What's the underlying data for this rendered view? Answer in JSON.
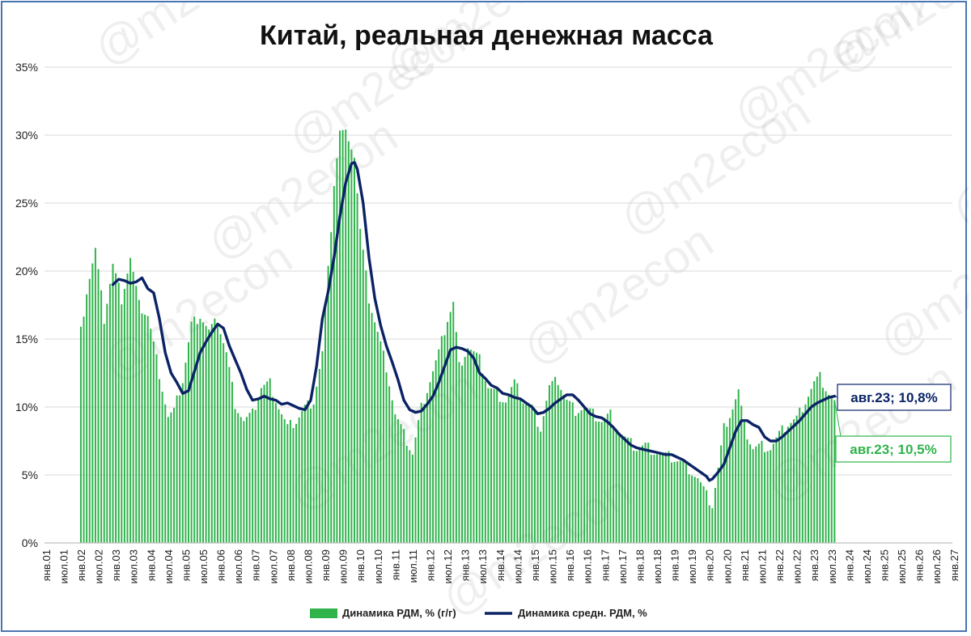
{
  "chart_data": {
    "type": "bar+line",
    "title": "Китай, реальная денежная масса",
    "watermark": "@m2econ",
    "ylim": [
      0,
      35
    ],
    "yticks": [
      0,
      5,
      10,
      15,
      20,
      25,
      30,
      35
    ],
    "ytick_labels": [
      "0%",
      "5%",
      "10%",
      "15%",
      "20%",
      "25%",
      "30%",
      "35%"
    ],
    "xlim": [
      "янв.01",
      "янв.27"
    ],
    "xtick_labels": [
      "янв.01",
      "июл.01",
      "янв.02",
      "июл.02",
      "янв.03",
      "июл.03",
      "янв.04",
      "июл.04",
      "янв.05",
      "июл.05",
      "янв.06",
      "июл.06",
      "янв.07",
      "июл.07",
      "янв.08",
      "июл.08",
      "янв.09",
      "июл.09",
      "янв.10",
      "июл.10",
      "янв.11",
      "июл.11",
      "янв.12",
      "июл.12",
      "янв.13",
      "июл.13",
      "янв.14",
      "июл.14",
      "янв.15",
      "июл.15",
      "янв.16",
      "июл.16",
      "янв.17",
      "июл.17",
      "янв.18",
      "июл.18",
      "янв.19",
      "июл.19",
      "янв.20",
      "июл.20",
      "янв.21",
      "июл.21",
      "янв.22",
      "июл.22",
      "янв.23",
      "июл.23",
      "янв.24",
      "июл.24",
      "янв.25",
      "июл.25",
      "янв.26",
      "июл.26",
      "янв.27"
    ],
    "colors": {
      "bars": "#2fb34a",
      "line": "#0b2365",
      "axis": "#bfbfbf",
      "grid": "#d9d9d9",
      "frame": "#4a74b0"
    },
    "legend": {
      "placement": "bottom-center"
    },
    "series": [
      {
        "name": "Динамика РДМ, % (г/г)",
        "type": "bar",
        "frequency": "monthly",
        "start": "янв.02",
        "anchors": [
          [
            "янв.02",
            15.6
          ],
          [
            "мар.02",
            18.6
          ],
          [
            "июн.02",
            21.6
          ],
          [
            "сен.02",
            16.5
          ],
          [
            "дек.02",
            20.5
          ],
          [
            "мар.03",
            18.0
          ],
          [
            "июн.03",
            21.0
          ],
          [
            "сен.03",
            17.5
          ],
          [
            "дек.03",
            16.8
          ],
          [
            "апр.04",
            12.5
          ],
          [
            "июл.04",
            9.3
          ],
          [
            "сен.04",
            9.7
          ],
          [
            "дек.04",
            12.0
          ],
          [
            "мар.05",
            16.1
          ],
          [
            "июн.05",
            16.8
          ],
          [
            "сен.05",
            15.6
          ],
          [
            "дек.05",
            16.4
          ],
          [
            "мар.06",
            14.0
          ],
          [
            "июн.06",
            10.3
          ],
          [
            "сен.06",
            9.0
          ],
          [
            "дек.06",
            9.5
          ],
          [
            "мар.07",
            11.5
          ],
          [
            "июн.07",
            11.8
          ],
          [
            "сен.07",
            10.0
          ],
          [
            "дек.07",
            8.5
          ],
          [
            "мар.08",
            9.0
          ],
          [
            "июн.08",
            10.0
          ],
          [
            "сен.08",
            10.5
          ],
          [
            "дек.08",
            14.0
          ],
          [
            "фев.09",
            20.0
          ],
          [
            "апр.09",
            26.5
          ],
          [
            "июн.09",
            30.3
          ],
          [
            "сен.09",
            30.0
          ],
          [
            "ноя.09",
            28.5
          ],
          [
            "янв.10",
            23.0
          ],
          [
            "апр.10",
            18.0
          ],
          [
            "июл.10",
            15.5
          ],
          [
            "окт.10",
            13.0
          ],
          [
            "янв.11",
            9.5
          ],
          [
            "апр.11",
            8.0
          ],
          [
            "июл.11",
            6.6
          ],
          [
            "окт.11",
            10.0
          ],
          [
            "янв.12",
            12.0
          ],
          [
            "апр.12",
            14.0
          ],
          [
            "июл.12",
            16.5
          ],
          [
            "сен.12",
            17.7
          ],
          [
            "ноя.12",
            13.0
          ],
          [
            "фев.13",
            14.5
          ],
          [
            "июн.13",
            13.5
          ],
          [
            "сен.13",
            11.5
          ],
          [
            "дек.13",
            11.0
          ],
          [
            "мар.14",
            10.5
          ],
          [
            "июн.14",
            11.8
          ],
          [
            "сен.14",
            10.5
          ],
          [
            "дек.14",
            10.0
          ],
          [
            "мар.15",
            8.5
          ],
          [
            "июн.15",
            11.5
          ],
          [
            "сен.15",
            12.0
          ],
          [
            "дек.15",
            10.5
          ],
          [
            "мар.16",
            9.8
          ],
          [
            "июн.16",
            10.0
          ],
          [
            "сен.16",
            9.5
          ],
          [
            "дек.16",
            9.0
          ],
          [
            "мар.17",
            9.5
          ],
          [
            "июн.17",
            8.2
          ],
          [
            "сен.17",
            7.5
          ],
          [
            "дек.17",
            7.0
          ],
          [
            "мар.18",
            7.2
          ],
          [
            "июн.18",
            6.8
          ],
          [
            "сен.18",
            6.5
          ],
          [
            "дек.18",
            6.3
          ],
          [
            "мар.19",
            6.0
          ],
          [
            "июн.19",
            5.5
          ],
          [
            "сен.19",
            4.8
          ],
          [
            "дек.19",
            3.5
          ],
          [
            "фев.20",
            2.8
          ],
          [
            "апр.20",
            5.5
          ],
          [
            "июн.20",
            8.5
          ],
          [
            "сен.20",
            10.0
          ],
          [
            "ноя.20",
            11.2
          ],
          [
            "янв.21",
            8.5
          ],
          [
            "апр.21",
            7.0
          ],
          [
            "июл.21",
            7.2
          ],
          [
            "окт.21",
            7.0
          ],
          [
            "янв.22",
            8.0
          ],
          [
            "апр.22",
            8.8
          ],
          [
            "июл.22",
            9.2
          ],
          [
            "окт.22",
            10.5
          ],
          [
            "янв.23",
            11.8
          ],
          [
            "мар.23",
            12.2
          ],
          [
            "июн.23",
            11.0
          ],
          [
            "авг.23",
            10.5
          ]
        ]
      },
      {
        "name": "Динамика средн. РДМ, %",
        "type": "line",
        "frequency": "monthly",
        "points": [
          [
            "дек.02",
            19.0
          ],
          [
            "фев.03",
            19.4
          ],
          [
            "апр.03",
            19.3
          ],
          [
            "июн.03",
            19.1
          ],
          [
            "авг.03",
            19.2
          ],
          [
            "окт.03",
            19.5
          ],
          [
            "дек.03",
            18.7
          ],
          [
            "фев.04",
            18.4
          ],
          [
            "апр.04",
            16.5
          ],
          [
            "июн.04",
            14.0
          ],
          [
            "авг.04",
            12.5
          ],
          [
            "окт.04",
            11.8
          ],
          [
            "дек.04",
            11.0
          ],
          [
            "фев.05",
            11.2
          ],
          [
            "апр.05",
            12.6
          ],
          [
            "июн.05",
            14.0
          ],
          [
            "авг.05",
            14.8
          ],
          [
            "окт.05",
            15.5
          ],
          [
            "дек.05",
            16.1
          ],
          [
            "фев.06",
            15.8
          ],
          [
            "апр.06",
            14.5
          ],
          [
            "июн.06",
            13.5
          ],
          [
            "авг.06",
            12.5
          ],
          [
            "окт.06",
            11.3
          ],
          [
            "дек.06",
            10.5
          ],
          [
            "фев.07",
            10.6
          ],
          [
            "апр.07",
            10.8
          ],
          [
            "июн.07",
            10.6
          ],
          [
            "авг.07",
            10.5
          ],
          [
            "окт.07",
            10.2
          ],
          [
            "дек.07",
            10.3
          ],
          [
            "фев.08",
            10.1
          ],
          [
            "апр.08",
            9.9
          ],
          [
            "июн.08",
            9.8
          ],
          [
            "авг.08",
            10.5
          ],
          [
            "окт.08",
            13.0
          ],
          [
            "дек.08",
            16.5
          ],
          [
            "фев.09",
            18.5
          ],
          [
            "апр.09",
            21.0
          ],
          [
            "июн.09",
            24.0
          ],
          [
            "авг.09",
            26.5
          ],
          [
            "окт.09",
            27.9
          ],
          [
            "ноя.09",
            28.0
          ],
          [
            "дек.09",
            27.5
          ],
          [
            "фев.10",
            25.0
          ],
          [
            "апр.10",
            21.0
          ],
          [
            "июн.10",
            18.0
          ],
          [
            "авг.10",
            16.0
          ],
          [
            "окт.10",
            14.5
          ],
          [
            "дек.10",
            13.3
          ],
          [
            "фев.11",
            12.0
          ],
          [
            "апр.11",
            10.5
          ],
          [
            "июн.11",
            9.8
          ],
          [
            "авг.11",
            9.6
          ],
          [
            "окт.11",
            9.7
          ],
          [
            "дек.11",
            10.2
          ],
          [
            "фев.12",
            10.8
          ],
          [
            "апр.12",
            11.8
          ],
          [
            "июн.12",
            13.0
          ],
          [
            "авг.12",
            14.2
          ],
          [
            "окт.12",
            14.4
          ],
          [
            "дек.12",
            14.3
          ],
          [
            "фев.13",
            14.1
          ],
          [
            "апр.13",
            13.6
          ],
          [
            "июн.13",
            12.5
          ],
          [
            "авг.13",
            12.1
          ],
          [
            "окт.13",
            11.6
          ],
          [
            "дек.13",
            11.4
          ],
          [
            "фев.14",
            11.0
          ],
          [
            "апр.14",
            10.9
          ],
          [
            "июн.14",
            10.7
          ],
          [
            "авг.14",
            10.6
          ],
          [
            "окт.14",
            10.3
          ],
          [
            "дек.14",
            10.0
          ],
          [
            "фев.15",
            9.5
          ],
          [
            "апр.15",
            9.6
          ],
          [
            "июн.15",
            9.9
          ],
          [
            "авг.15",
            10.3
          ],
          [
            "окт.15",
            10.6
          ],
          [
            "дек.15",
            10.9
          ],
          [
            "фев.16",
            10.9
          ],
          [
            "апр.16",
            10.5
          ],
          [
            "июн.16",
            10.0
          ],
          [
            "авг.16",
            9.5
          ],
          [
            "окт.16",
            9.3
          ],
          [
            "дек.16",
            9.2
          ],
          [
            "фев.17",
            8.9
          ],
          [
            "апр.17",
            8.5
          ],
          [
            "июн.17",
            8.0
          ],
          [
            "авг.17",
            7.6
          ],
          [
            "окт.17",
            7.2
          ],
          [
            "дек.17",
            7.0
          ],
          [
            "фев.18",
            6.9
          ],
          [
            "апр.18",
            6.8
          ],
          [
            "июн.18",
            6.7
          ],
          [
            "авг.18",
            6.6
          ],
          [
            "окт.18",
            6.5
          ],
          [
            "дек.18",
            6.5
          ],
          [
            "фев.19",
            6.3
          ],
          [
            "апр.19",
            6.1
          ],
          [
            "июн.19",
            5.8
          ],
          [
            "авг.19",
            5.5
          ],
          [
            "окт.19",
            5.2
          ],
          [
            "дек.19",
            4.9
          ],
          [
            "янв.20",
            4.6
          ],
          [
            "фев.20",
            4.7
          ],
          [
            "апр.20",
            5.2
          ],
          [
            "июн.20",
            5.8
          ],
          [
            "авг.20",
            7.0
          ],
          [
            "окт.20",
            8.2
          ],
          [
            "дек.20",
            9.0
          ],
          [
            "фев.21",
            9.0
          ],
          [
            "апр.21",
            8.7
          ],
          [
            "июн.21",
            8.5
          ],
          [
            "авг.21",
            7.8
          ],
          [
            "окт.21",
            7.5
          ],
          [
            "дек.21",
            7.5
          ],
          [
            "фев.22",
            7.8
          ],
          [
            "апр.22",
            8.2
          ],
          [
            "июн.22",
            8.6
          ],
          [
            "авг.22",
            9.0
          ],
          [
            "окт.22",
            9.5
          ],
          [
            "дек.22",
            10.0
          ],
          [
            "фев.23",
            10.3
          ],
          [
            "апр.23",
            10.5
          ],
          [
            "июн.23",
            10.7
          ],
          [
            "авг.23",
            10.8
          ]
        ]
      }
    ],
    "annotations": [
      {
        "text": "авг.23; 10,8%",
        "series": "Динамика средн. РДМ, %",
        "color": "#0b2365"
      },
      {
        "text": "авг.23; 10,5%",
        "series": "Динамика РДМ, % (г/г)",
        "color": "#2fb34a"
      }
    ]
  }
}
